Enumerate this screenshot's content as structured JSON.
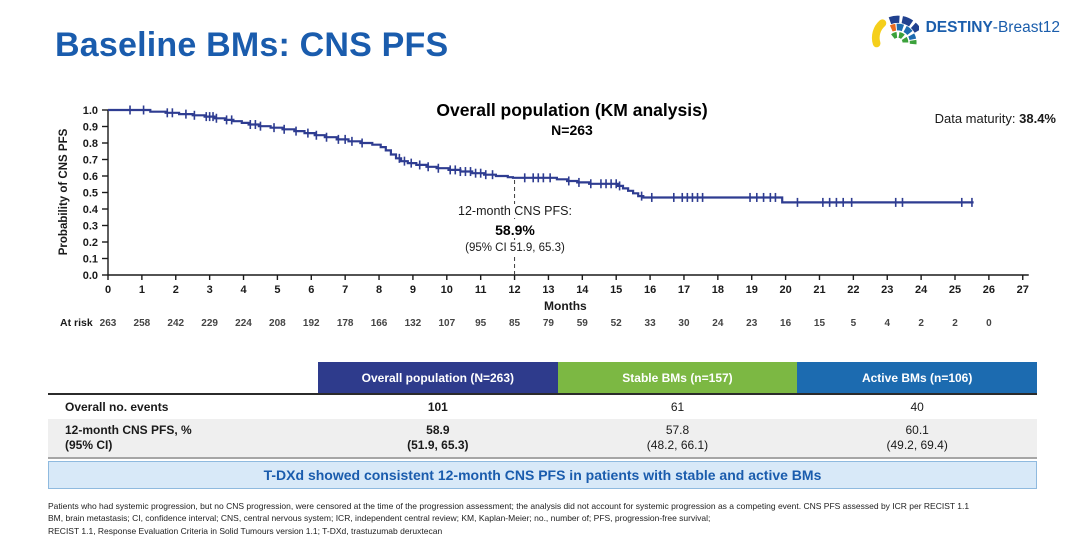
{
  "logo": {
    "text_bold": "DESTINY",
    "text_regular": "-Breast12"
  },
  "slide_title": "Baseline BMs: CNS PFS",
  "chart": {
    "title": "Overall population (KM analysis)",
    "subtitle": "N=263",
    "data_maturity_label": "Data maturity: ",
    "data_maturity_value": "38.4%",
    "y_axis_label": "Probability of CNS PFS",
    "x_axis_label": "Months",
    "at_risk_label": "At risk",
    "annotation": {
      "line1": "12-month CNS PFS:",
      "line2": "58.9%",
      "line3": "(95% CI 51.9, 65.3)"
    }
  },
  "chart_data": {
    "type": "line",
    "subtype": "kaplan-meier-step",
    "title": "Overall population (KM analysis)",
    "n": 263,
    "xlabel": "Months",
    "ylabel": "Probability of CNS PFS",
    "xlim": [
      0,
      27
    ],
    "ylim": [
      0.0,
      1.0
    ],
    "grid": false,
    "x_ticks": [
      0,
      1,
      2,
      3,
      4,
      5,
      6,
      7,
      8,
      9,
      10,
      11,
      12,
      13,
      14,
      15,
      16,
      17,
      18,
      19,
      20,
      21,
      22,
      23,
      24,
      25,
      26,
      27
    ],
    "y_ticks": [
      0.0,
      0.1,
      0.2,
      0.3,
      0.4,
      0.5,
      0.6,
      0.7,
      0.8,
      0.9,
      1.0
    ],
    "curve_color": "#2E3C91",
    "km_steps": [
      [
        0,
        1.0
      ],
      [
        1.25,
        0.99
      ],
      [
        1.7,
        0.983
      ],
      [
        2.1,
        0.975
      ],
      [
        2.5,
        0.968
      ],
      [
        2.85,
        0.96
      ],
      [
        3.15,
        0.95
      ],
      [
        3.45,
        0.94
      ],
      [
        3.7,
        0.932
      ],
      [
        3.95,
        0.922
      ],
      [
        4.15,
        0.912
      ],
      [
        4.45,
        0.902
      ],
      [
        4.8,
        0.893
      ],
      [
        5.15,
        0.883
      ],
      [
        5.5,
        0.872
      ],
      [
        5.8,
        0.86
      ],
      [
        6.1,
        0.847
      ],
      [
        6.4,
        0.835
      ],
      [
        6.75,
        0.822
      ],
      [
        7.1,
        0.81
      ],
      [
        7.45,
        0.8
      ],
      [
        7.8,
        0.79
      ],
      [
        8.05,
        0.775
      ],
      [
        8.2,
        0.755
      ],
      [
        8.35,
        0.73
      ],
      [
        8.5,
        0.707
      ],
      [
        8.65,
        0.69
      ],
      [
        8.85,
        0.678
      ],
      [
        9.1,
        0.667
      ],
      [
        9.4,
        0.656
      ],
      [
        9.7,
        0.647
      ],
      [
        10.05,
        0.637
      ],
      [
        10.4,
        0.627
      ],
      [
        10.75,
        0.617
      ],
      [
        11.1,
        0.608
      ],
      [
        11.45,
        0.6
      ],
      [
        11.8,
        0.593
      ],
      [
        11.95,
        0.589
      ],
      [
        13.25,
        0.58
      ],
      [
        13.55,
        0.57
      ],
      [
        13.85,
        0.561
      ],
      [
        14.2,
        0.553
      ],
      [
        15.05,
        0.54
      ],
      [
        15.2,
        0.525
      ],
      [
        15.35,
        0.51
      ],
      [
        15.5,
        0.495
      ],
      [
        15.65,
        0.478
      ],
      [
        15.8,
        0.47
      ],
      [
        19.9,
        0.44
      ],
      [
        25.55,
        0.44
      ]
    ],
    "censor_times": [
      0.65,
      1.05,
      1.75,
      1.9,
      2.3,
      2.55,
      2.9,
      3.0,
      3.1,
      3.2,
      3.5,
      3.65,
      4.2,
      4.35,
      4.5,
      4.9,
      5.2,
      5.55,
      5.9,
      6.15,
      6.45,
      6.8,
      7.0,
      7.2,
      7.5,
      8.6,
      8.75,
      8.95,
      9.2,
      9.45,
      9.75,
      10.1,
      10.25,
      10.4,
      10.55,
      10.7,
      10.85,
      11.0,
      11.15,
      11.35,
      12.3,
      12.55,
      12.7,
      12.85,
      13.05,
      13.6,
      13.9,
      14.25,
      14.55,
      14.7,
      14.85,
      15.0,
      15.1,
      15.75,
      16.05,
      16.7,
      16.95,
      17.1,
      17.25,
      17.4,
      17.55,
      18.95,
      19.15,
      19.35,
      19.55,
      19.7,
      20.35,
      21.1,
      21.3,
      21.5,
      21.7,
      21.95,
      23.25,
      23.45,
      25.2,
      25.5
    ],
    "milestone": {
      "time": 12,
      "value": 0.589,
      "label": "12-month CNS PFS: 58.9% (95% CI 51.9, 65.3)"
    },
    "data_maturity_pct": 38.4,
    "at_risk": {
      "times": [
        0,
        1,
        2,
        3,
        4,
        5,
        6,
        7,
        8,
        9,
        10,
        11,
        12,
        13,
        14,
        15,
        16,
        17,
        18,
        19,
        20,
        21,
        22,
        23,
        24,
        25,
        26
      ],
      "counts": [
        263,
        258,
        242,
        229,
        224,
        208,
        192,
        178,
        166,
        132,
        107,
        95,
        85,
        79,
        59,
        52,
        33,
        30,
        24,
        23,
        16,
        15,
        5,
        4,
        2,
        2,
        0
      ]
    }
  },
  "table": {
    "columns": [
      {
        "label": "Overall population (N=263)",
        "color": "#2E3B8C"
      },
      {
        "label": "Stable BMs (n=157)",
        "color": "#7CB843"
      },
      {
        "label": "Active BMs (n=106)",
        "color": "#1C6BB0"
      }
    ],
    "rows": [
      {
        "label": "Overall no. events",
        "values": [
          "101",
          "61",
          "40"
        ]
      },
      {
        "label": "12-month CNS PFS, %",
        "label2": "(95% CI)",
        "values": [
          [
            "58.9",
            "(51.9, 65.3)"
          ],
          [
            "57.8",
            "(48.2, 66.1)"
          ],
          [
            "60.1",
            "(49.2, 69.4)"
          ]
        ]
      }
    ]
  },
  "banner": {
    "text": "T-DXd showed consistent 12-month CNS PFS in patients with stable and active BMs",
    "bg": "#D8E9F8",
    "text_color": "#1A5CAD"
  },
  "footnotes": {
    "line1": "Patients who had systemic progression, but no CNS progression, were censored at the time of the progression assessment; the analysis did not account for systemic progression as a competing event. CNS PFS assessed by ICR per RECIST 1.1",
    "line2": "BM, brain metastasis; CI, confidence interval; CNS, central nervous system; ICR, independent central review; KM, Kaplan-Meier; no., number of; PFS, progression-free survival;",
    "line3": "RECIST 1.1, Response Evaluation Criteria in Solid Tumours version 1.1; T-DXd, trastuzumab deruxtecan"
  }
}
